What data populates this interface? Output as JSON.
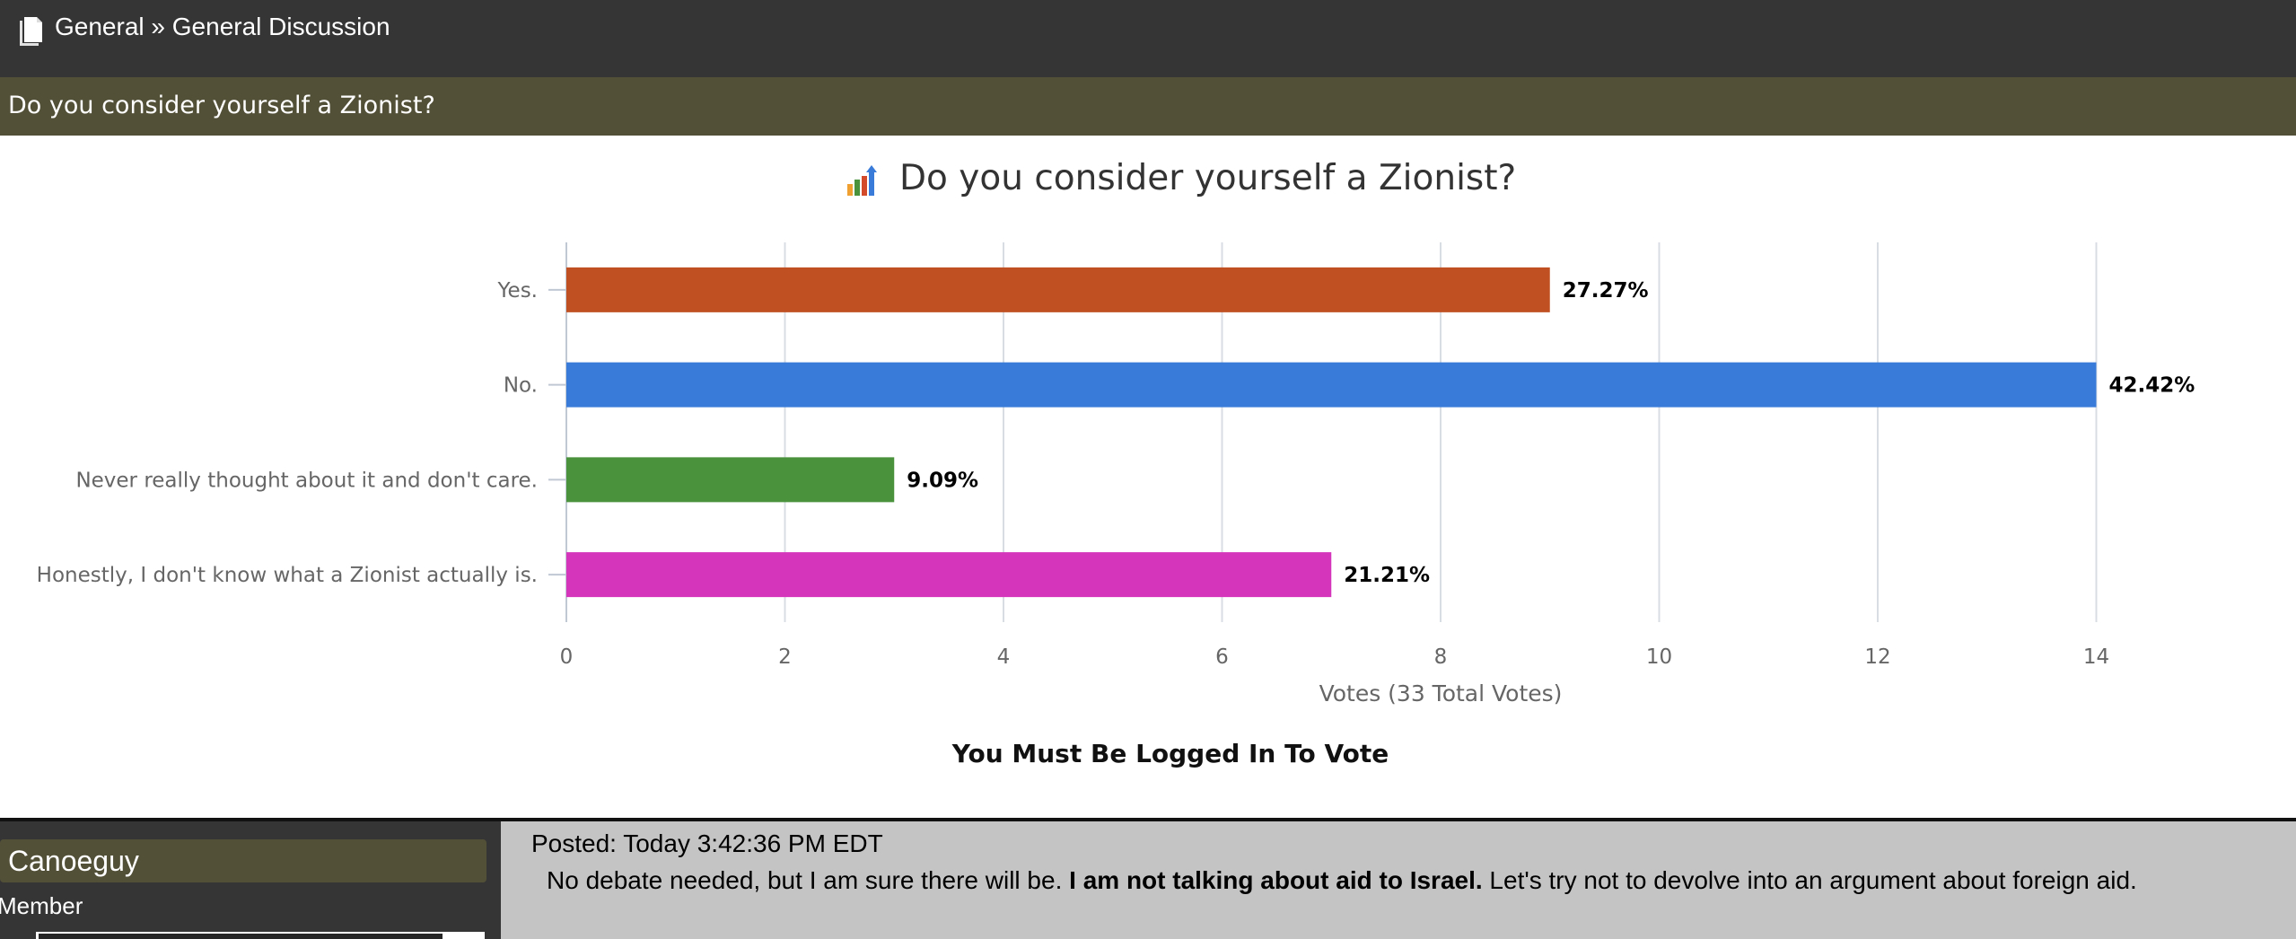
{
  "breadcrumb": {
    "section": "General",
    "separator": "»",
    "forum": "General Discussion"
  },
  "topic_title": "Do you consider yourself a Zionist?",
  "chart_data": {
    "type": "bar",
    "orientation": "horizontal",
    "title": "Do you consider yourself a Zionist?",
    "categories": [
      "Yes.",
      "No.",
      "Never really thought about it and don't care.",
      "Honestly, I don't know what a Zionist actually is."
    ],
    "values": [
      9,
      14,
      3,
      7
    ],
    "data_labels": [
      "27.27%",
      "42.42%",
      "9.09%",
      "21.21%"
    ],
    "colors": [
      "#c05022",
      "#387bd8",
      "#4b923c",
      "#d535bb"
    ],
    "xlabel": "Votes (33 Total Votes)",
    "ylabel": "",
    "xlim": [
      0,
      16
    ],
    "x_ticks": [
      "0",
      "2",
      "4",
      "6",
      "8",
      "10",
      "12",
      "14",
      "16"
    ],
    "grid": true,
    "legend": "none"
  },
  "poll": {
    "login_message": "You Must Be Logged In To Vote"
  },
  "post": {
    "author": "Canoeguy",
    "rank": "Member",
    "posted": "Posted: Today 3:42:36 PM EDT",
    "body_start": "No debate needed, but I am sure there will be. ",
    "body_bold": "I am not talking about aid to Israel.",
    "body_end": " Let's try not to devolve into an argument about foreign aid."
  },
  "colors": {
    "topbar": "#353535",
    "subbar": "#535038",
    "post_background": "#c4c4c4"
  },
  "icons": {
    "breadcrumb": "page-icon",
    "chart_title": "bar-chart-icon"
  }
}
